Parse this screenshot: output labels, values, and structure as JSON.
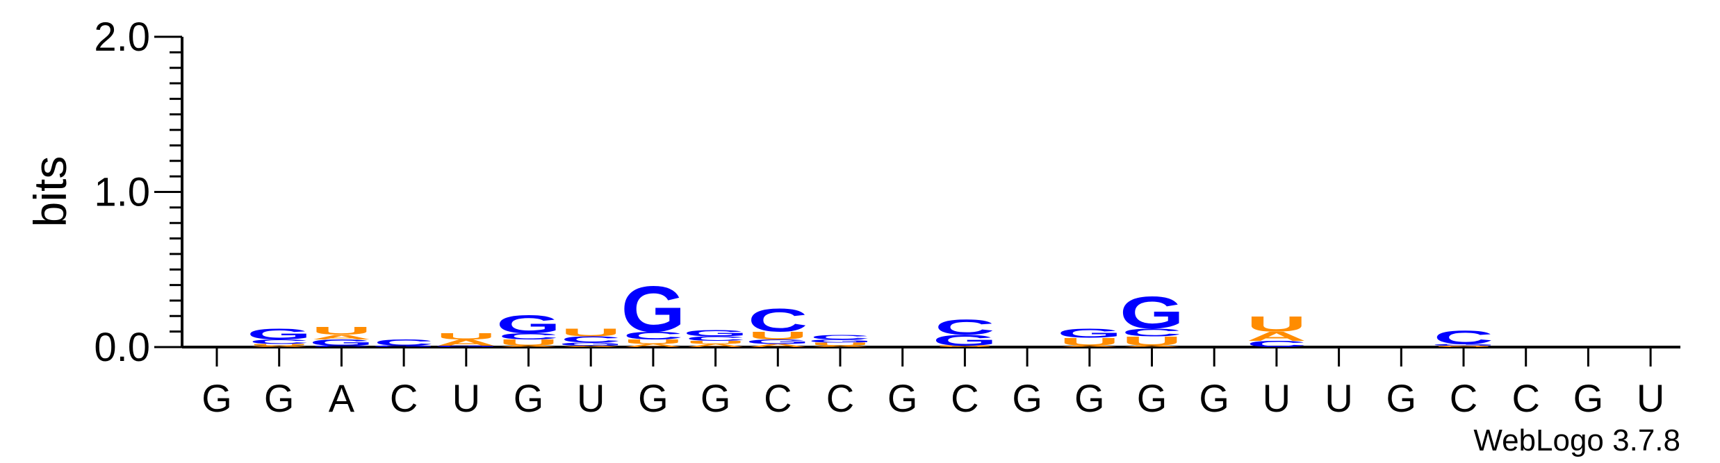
{
  "chart_data": {
    "type": "sequence-logo",
    "ylabel": "bits",
    "ylim": [
      0,
      2.0
    ],
    "yticks": [
      "0.0",
      "1.0",
      "2.0"
    ],
    "xtick_labels": [
      "G",
      "G",
      "A",
      "C",
      "U",
      "G",
      "U",
      "G",
      "G",
      "C",
      "C",
      "G",
      "C",
      "G",
      "G",
      "G",
      "G",
      "U",
      "U",
      "G",
      "C",
      "C",
      "G",
      "U"
    ],
    "colors": {
      "G": "#0000ff",
      "C": "#0000ff",
      "A": "#ff8c00",
      "U": "#ff8c00"
    },
    "positions": [
      [],
      [
        {
          "l": "A",
          "h": 0.01
        },
        {
          "l": "U",
          "h": 0.01
        },
        {
          "l": "C",
          "h": 0.03
        },
        {
          "l": "G",
          "h": 0.07
        }
      ],
      [
        {
          "l": "C",
          "h": 0.01
        },
        {
          "l": "G",
          "h": 0.04
        },
        {
          "l": "A",
          "h": 0.03
        },
        {
          "l": "U",
          "h": 0.05
        }
      ],
      [
        {
          "l": "G",
          "h": 0.01
        },
        {
          "l": "C",
          "h": 0.04
        }
      ],
      [
        {
          "l": "G",
          "h": 0.01
        },
        {
          "l": "A",
          "h": 0.04
        },
        {
          "l": "U",
          "h": 0.04
        }
      ],
      [
        {
          "l": "A",
          "h": 0.01
        },
        {
          "l": "U",
          "h": 0.04
        },
        {
          "l": "C",
          "h": 0.04
        },
        {
          "l": "G",
          "h": 0.12
        }
      ],
      [
        {
          "l": "A",
          "h": 0.01
        },
        {
          "l": "G",
          "h": 0.02
        },
        {
          "l": "C",
          "h": 0.04
        },
        {
          "l": "U",
          "h": 0.05
        }
      ],
      [
        {
          "l": "A",
          "h": 0.02
        },
        {
          "l": "U",
          "h": 0.03
        },
        {
          "l": "C",
          "h": 0.05
        },
        {
          "l": "G",
          "h": 0.3
        }
      ],
      [
        {
          "l": "A",
          "h": 0.02
        },
        {
          "l": "U",
          "h": 0.02
        },
        {
          "l": "C",
          "h": 0.03
        },
        {
          "l": "G",
          "h": 0.04
        }
      ],
      [
        {
          "l": "A",
          "h": 0.02
        },
        {
          "l": "G",
          "h": 0.03
        },
        {
          "l": "U",
          "h": 0.05
        },
        {
          "l": "C",
          "h": 0.15
        }
      ],
      [
        {
          "l": "A",
          "h": 0.01
        },
        {
          "l": "U",
          "h": 0.02
        },
        {
          "l": "G",
          "h": 0.02
        },
        {
          "l": "C",
          "h": 0.03
        }
      ],
      [],
      [
        {
          "l": "A",
          "h": 0.005
        },
        {
          "l": "U",
          "h": 0.005
        },
        {
          "l": "G",
          "h": 0.07
        },
        {
          "l": "C",
          "h": 0.1
        }
      ],
      [],
      [
        {
          "l": "A",
          "h": 0.01
        },
        {
          "l": "U",
          "h": 0.05
        },
        {
          "l": "G",
          "h": 0.06
        }
      ],
      [
        {
          "l": "A",
          "h": 0.01
        },
        {
          "l": "U",
          "h": 0.06
        },
        {
          "l": "C",
          "h": 0.05
        },
        {
          "l": "G",
          "h": 0.21
        }
      ],
      [],
      [
        {
          "l": "C",
          "h": 0.04
        },
        {
          "l": "A",
          "h": 0.06
        },
        {
          "l": "U",
          "h": 0.1
        }
      ],
      [],
      [],
      [
        {
          "l": "U",
          "h": 0.005
        },
        {
          "l": "A",
          "h": 0.005
        },
        {
          "l": "G",
          "h": 0.01
        },
        {
          "l": "C",
          "h": 0.09
        }
      ],
      [],
      [],
      []
    ],
    "credit": "WebLogo 3.7.8"
  }
}
